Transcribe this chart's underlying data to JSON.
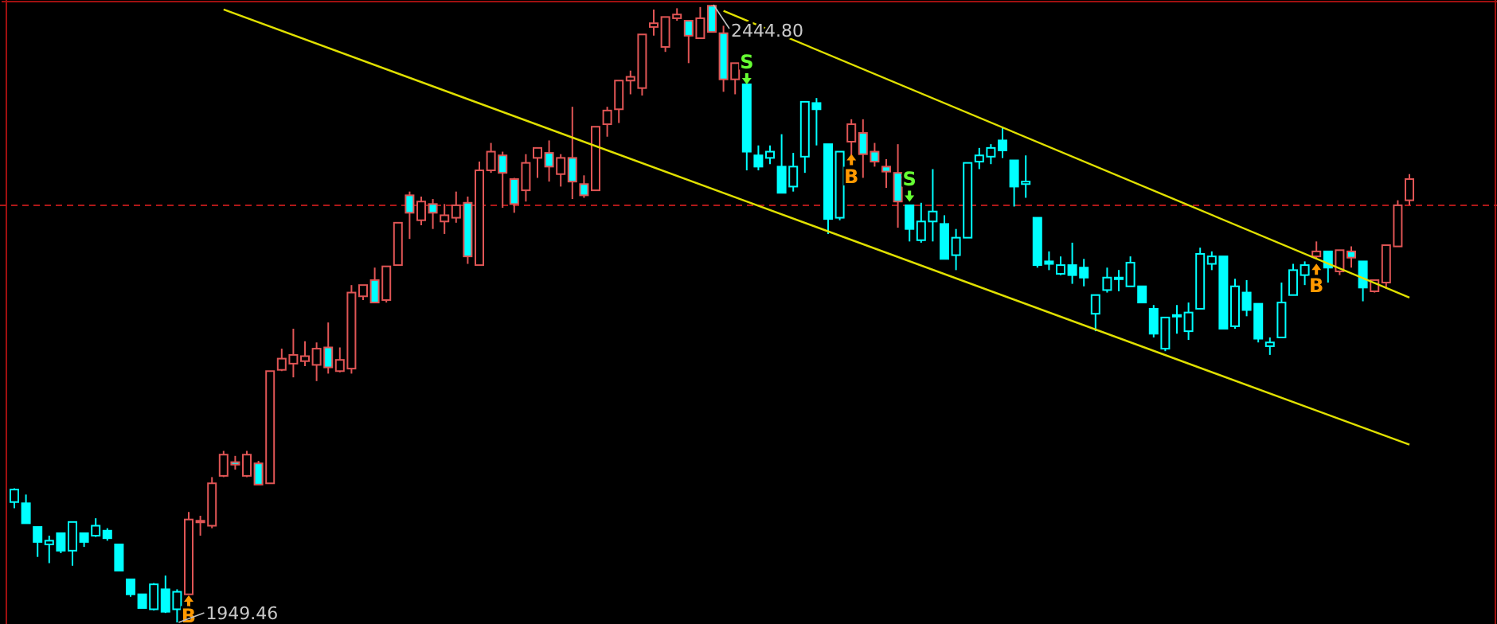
{
  "chart_data": {
    "type": "candlestick",
    "tick_labels": false,
    "legend": false,
    "categories": [
      null,
      null,
      null,
      null,
      null,
      null,
      null,
      null,
      null,
      null,
      null,
      null,
      null,
      null,
      null,
      null,
      null,
      null,
      null,
      null,
      null,
      null,
      null,
      null,
      null,
      null,
      null,
      null,
      null,
      null,
      null,
      null,
      null,
      null,
      null,
      null,
      null,
      null,
      null,
      null,
      null,
      null,
      null,
      null,
      null,
      null,
      null,
      null,
      null,
      null,
      null,
      null,
      null,
      null,
      null,
      null,
      null,
      null,
      null,
      null,
      null,
      null,
      null,
      null,
      null,
      null,
      null,
      null,
      null,
      null,
      null,
      null,
      null,
      null,
      null,
      null,
      null,
      null,
      null,
      null,
      null,
      null,
      null,
      null,
      null,
      null,
      null,
      null,
      null,
      null,
      null,
      null,
      null,
      null,
      null,
      null,
      null,
      null,
      null,
      null,
      null,
      null,
      null,
      null,
      null,
      null,
      null,
      null,
      null,
      null,
      null,
      null,
      null,
      null,
      null,
      null,
      null,
      null,
      null,
      null,
      null
    ],
    "ohlc": [
      [
        2046,
        2057,
        2041,
        2056
      ],
      [
        2045,
        2052,
        2029,
        2029
      ],
      [
        2026,
        2026,
        2002,
        2014
      ],
      [
        2012,
        2019,
        1997,
        2015
      ],
      [
        2021,
        2021,
        2005,
        2007
      ],
      [
        2007,
        2030,
        1995,
        2030
      ],
      [
        2021,
        2021,
        2010,
        2014
      ],
      [
        2019,
        2033,
        2018,
        2027
      ],
      [
        2023,
        2025,
        2015,
        2017
      ],
      [
        2012,
        2012,
        1991,
        1991
      ],
      [
        1984,
        1984,
        1970,
        1972
      ],
      [
        1972,
        1972,
        1961,
        1961
      ],
      [
        1960,
        1981,
        1959,
        1980
      ],
      [
        1976,
        1987,
        1957,
        1958
      ],
      [
        1960,
        1976,
        1949.46,
        1974
      ],
      [
        1972,
        2038,
        1972,
        2032
      ],
      [
        2030,
        2035,
        2019,
        2031
      ],
      [
        2027,
        2066,
        2025,
        2061
      ],
      [
        2067,
        2087,
        2066,
        2084
      ],
      [
        2078,
        2083,
        2072,
        2076
      ],
      [
        2067,
        2087,
        2066,
        2084
      ],
      [
        2077,
        2079,
        2060,
        2060
      ],
      [
        2061,
        2151,
        2061,
        2151
      ],
      [
        2152,
        2169,
        2151,
        2161
      ],
      [
        2157,
        2185,
        2146,
        2164
      ],
      [
        2159,
        2175,
        2155,
        2163
      ],
      [
        2156,
        2174,
        2143,
        2169
      ],
      [
        2170,
        2190,
        2149,
        2154
      ],
      [
        2151,
        2170,
        2150,
        2160
      ],
      [
        2153,
        2220,
        2149,
        2214
      ],
      [
        2211,
        2220,
        2208,
        2220
      ],
      [
        2224,
        2234,
        2206,
        2206
      ],
      [
        2208,
        2235,
        2206,
        2235
      ],
      [
        2236,
        2270,
        2236,
        2270
      ],
      [
        2292,
        2295,
        2257,
        2278
      ],
      [
        2272,
        2291,
        2268,
        2287
      ],
      [
        2285,
        2289,
        2265,
        2278
      ],
      [
        2271,
        2285,
        2261,
        2276
      ],
      [
        2274,
        2295,
        2270,
        2284
      ],
      [
        2286,
        2291,
        2237,
        2243
      ],
      [
        2236,
        2319,
        2236,
        2312
      ],
      [
        2312,
        2334,
        2310,
        2327
      ],
      [
        2324,
        2327,
        2282,
        2310
      ],
      [
        2305,
        2306,
        2278,
        2285
      ],
      [
        2296,
        2325,
        2287,
        2318
      ],
      [
        2322,
        2330,
        2306,
        2330
      ],
      [
        2326,
        2336,
        2303,
        2315
      ],
      [
        2309,
        2325,
        2299,
        2322
      ],
      [
        2322,
        2363,
        2289,
        2303
      ],
      [
        2301,
        2308,
        2290,
        2292
      ],
      [
        2296,
        2347,
        2296,
        2347
      ],
      [
        2349,
        2363,
        2339,
        2360
      ],
      [
        2361,
        2384,
        2350,
        2384
      ],
      [
        2384,
        2392,
        2373,
        2387
      ],
      [
        2378,
        2421,
        2372,
        2421
      ],
      [
        2427,
        2441,
        2420,
        2430
      ],
      [
        2411,
        2435,
        2407,
        2435
      ],
      [
        2434,
        2442,
        2432,
        2437
      ],
      [
        2432,
        2432,
        2398,
        2420
      ],
      [
        2418,
        2443,
        2418,
        2434
      ],
      [
        2444,
        2444.8,
        2423,
        2423
      ],
      [
        2422,
        2428,
        2375,
        2385
      ],
      [
        2385,
        2398,
        2373,
        2398
      ],
      [
        2381,
        2381,
        2312,
        2327
      ],
      [
        2324,
        2332,
        2312,
        2315
      ],
      [
        2322,
        2332,
        2317,
        2327
      ],
      [
        2315,
        2341,
        2294,
        2294
      ],
      [
        2299,
        2326,
        2295,
        2315
      ],
      [
        2323,
        2367,
        2310,
        2367
      ],
      [
        2366,
        2370,
        2332,
        2361
      ],
      [
        2333,
        2333,
        2261,
        2273
      ],
      [
        2274,
        2327,
        2272,
        2327
      ],
      [
        2335,
        2353,
        2323,
        2349
      ],
      [
        2342,
        2353,
        2306,
        2325
      ],
      [
        2327,
        2334,
        2315,
        2319
      ],
      [
        2315,
        2321,
        2298,
        2311
      ],
      [
        2310,
        2333,
        2266,
        2287
      ],
      [
        2284,
        2284,
        2255,
        2265
      ],
      [
        2256,
        2286,
        2254,
        2271
      ],
      [
        2271,
        2313,
        2255,
        2279
      ],
      [
        2269,
        2276,
        2241,
        2241
      ],
      [
        2244,
        2265,
        2232,
        2258
      ],
      [
        2258,
        2318,
        2258,
        2318
      ],
      [
        2319,
        2330,
        2313,
        2324
      ],
      [
        2323,
        2333,
        2317,
        2330
      ],
      [
        2336,
        2346,
        2322,
        2328
      ],
      [
        2320,
        2320,
        2283,
        2299
      ],
      [
        2301,
        2324,
        2290,
        2303
      ],
      [
        2274,
        2274,
        2234,
        2236
      ],
      [
        2239,
        2247,
        2232,
        2237
      ],
      [
        2229,
        2243,
        2228,
        2236
      ],
      [
        2236,
        2254,
        2221,
        2228
      ],
      [
        2234,
        2241,
        2219,
        2226
      ],
      [
        2197,
        2212,
        2183,
        2212
      ],
      [
        2216,
        2234,
        2214,
        2226
      ],
      [
        2225,
        2232,
        2215,
        2226
      ],
      [
        2219,
        2243,
        2219,
        2238
      ],
      [
        2219,
        2219,
        2206,
        2206
      ],
      [
        2201,
        2204,
        2178,
        2181
      ],
      [
        2169,
        2194,
        2167,
        2194
      ],
      [
        2195,
        2204,
        2181,
        2196
      ],
      [
        2183,
        2206,
        2176,
        2198
      ],
      [
        2201,
        2250,
        2201,
        2245
      ],
      [
        2237,
        2247,
        2232,
        2243
      ],
      [
        2243,
        2243,
        2185,
        2185
      ],
      [
        2187,
        2225,
        2185,
        2219
      ],
      [
        2214,
        2224,
        2195,
        2200
      ],
      [
        2205,
        2205,
        2174,
        2177
      ],
      [
        2171,
        2178,
        2164,
        2174
      ],
      [
        2178,
        2222,
        2178,
        2206
      ],
      [
        2212,
        2237,
        2212,
        2232
      ],
      [
        2228,
        2239,
        2220,
        2236
      ],
      [
        2243,
        2255,
        2241,
        2247
      ],
      [
        2247,
        2247,
        2222,
        2234
      ],
      [
        2231,
        2248,
        2228,
        2248
      ],
      [
        2247,
        2251,
        2234,
        2242
      ],
      [
        2239,
        2239,
        2207,
        2218
      ],
      [
        2215,
        2224,
        2214,
        2224
      ],
      [
        2222,
        2252,
        2217,
        2252
      ],
      [
        2251,
        2288,
        2251,
        2284
      ],
      [
        2288,
        2309,
        2284,
        2305
      ]
    ],
    "colors": [
      "#00ffff",
      "#00ffff",
      "#00ffff",
      "#00ffff",
      "#00ffff",
      "#00ffff",
      "#00ffff",
      "#00ffff",
      "#00ffff",
      "#00ffff",
      "#00ffff",
      "#00ffff",
      "#00ffff",
      "#00ffff",
      "#00ffff",
      "#e05555",
      "#e05555",
      "#e05555",
      "#e05555",
      "#e05555",
      "#e05555",
      "#e05555",
      "#e05555",
      "#e05555",
      "#e05555",
      "#e05555",
      "#e05555",
      "#e05555",
      "#e05555",
      "#e05555",
      "#e05555",
      "#e05555",
      "#e05555",
      "#e05555",
      "#e05555",
      "#e05555",
      "#e05555",
      "#e05555",
      "#e05555",
      "#e05555",
      "#e05555",
      "#e05555",
      "#e05555",
      "#e05555",
      "#e05555",
      "#e05555",
      "#e05555",
      "#e05555",
      "#e05555",
      "#e05555",
      "#e05555",
      "#e05555",
      "#e05555",
      "#e05555",
      "#e05555",
      "#e05555",
      "#e05555",
      "#e05555",
      "#e05555",
      "#e05555",
      "#e05555",
      "#e05555",
      "#e05555",
      "#00ffff",
      "#00ffff",
      "#00ffff",
      "#00ffff",
      "#00ffff",
      "#00ffff",
      "#00ffff",
      "#00ffff",
      "#00ffff",
      "#e05555",
      "#e05555",
      "#e05555",
      "#e05555",
      "#e05555",
      "#00ffff",
      "#00ffff",
      "#00ffff",
      "#00ffff",
      "#00ffff",
      "#00ffff",
      "#00ffff",
      "#00ffff",
      "#00ffff",
      "#00ffff",
      "#00ffff",
      "#00ffff",
      "#00ffff",
      "#00ffff",
      "#00ffff",
      "#00ffff",
      "#00ffff",
      "#00ffff",
      "#00ffff",
      "#00ffff",
      "#00ffff",
      "#00ffff",
      "#00ffff",
      "#00ffff",
      "#00ffff",
      "#00ffff",
      "#00ffff",
      "#00ffff",
      "#00ffff",
      "#00ffff",
      "#00ffff",
      "#00ffff",
      "#00ffff",
      "#00ffff",
      "#00ffff",
      "#e05555",
      "#00ffff",
      "#e05555",
      "#e05555",
      "#00ffff",
      "#e05555",
      "#e05555",
      "#e05555",
      "#e05555"
    ],
    "series": [
      {
        "type": "line",
        "color": "#e0e000",
        "values": [
          null,
          null,
          null,
          null,
          null,
          null,
          null,
          null,
          null,
          null,
          null,
          null,
          null,
          null,
          null,
          null,
          null,
          null,
          2441,
          null,
          null,
          null,
          null,
          null,
          null,
          null,
          null,
          null,
          null,
          null,
          null,
          null,
          null,
          null,
          null,
          null,
          null,
          null,
          null,
          null,
          null,
          null,
          null,
          null,
          null,
          null,
          null,
          null,
          null,
          null,
          null,
          null,
          null,
          null,
          null,
          null,
          null,
          null,
          null,
          null,
          null,
          null,
          null,
          null,
          null,
          null,
          null,
          null,
          null,
          null,
          null,
          null,
          null,
          null,
          null,
          null,
          null,
          null,
          null,
          null,
          null,
          null,
          null,
          null,
          null,
          null,
          null,
          null,
          null,
          null,
          null,
          null,
          null,
          null,
          null,
          null,
          null,
          null,
          null,
          null,
          null,
          null,
          null,
          null,
          null,
          null,
          null,
          null,
          null,
          null,
          null,
          null,
          null,
          null,
          null,
          null,
          null,
          null,
          null,
          null,
          2092
        ]
      },
      {
        "type": "line",
        "color": "#e0e000",
        "values": [
          null,
          null,
          null,
          null,
          null,
          null,
          null,
          null,
          null,
          null,
          null,
          null,
          null,
          null,
          null,
          null,
          null,
          null,
          null,
          null,
          null,
          null,
          null,
          null,
          null,
          null,
          null,
          null,
          null,
          null,
          null,
          null,
          null,
          null,
          null,
          null,
          null,
          null,
          null,
          null,
          null,
          null,
          null,
          null,
          null,
          null,
          null,
          null,
          null,
          null,
          null,
          null,
          null,
          null,
          null,
          null,
          null,
          null,
          null,
          null,
          null,
          2440,
          null,
          null,
          null,
          null,
          null,
          null,
          null,
          null,
          null,
          null,
          null,
          null,
          null,
          null,
          null,
          null,
          null,
          null,
          null,
          null,
          null,
          null,
          null,
          null,
          null,
          null,
          null,
          null,
          null,
          null,
          null,
          null,
          null,
          null,
          null,
          null,
          null,
          null,
          null,
          null,
          null,
          null,
          null,
          null,
          null,
          null,
          null,
          null,
          null,
          null,
          null,
          null,
          null,
          null,
          null,
          null,
          null,
          null,
          2210
        ]
      },
      {
        "type": "scatter",
        "name": "B",
        "color": "#ff9900",
        "values": [
          null,
          null,
          null,
          null,
          null,
          null,
          null,
          null,
          null,
          null,
          null,
          null,
          null,
          null,
          null,
          1966,
          null,
          null,
          null,
          null,
          null,
          null,
          null,
          null,
          null,
          null,
          null,
          null,
          null,
          null,
          null,
          null,
          null,
          null,
          null,
          null,
          null,
          null,
          null,
          null,
          null,
          null,
          null,
          null,
          null,
          null,
          null,
          null,
          null,
          null,
          null,
          null,
          null,
          null,
          null,
          null,
          null,
          null,
          null,
          null,
          null,
          null,
          null,
          null,
          null,
          null,
          null,
          null,
          null,
          null,
          null,
          null,
          2320,
          null,
          null,
          null,
          null,
          null,
          null,
          null,
          null,
          null,
          null,
          null,
          null,
          null,
          null,
          null,
          null,
          null,
          null,
          null,
          null,
          null,
          null,
          null,
          null,
          null,
          null,
          null,
          null,
          null,
          null,
          null,
          null,
          null,
          null,
          null,
          null,
          null,
          null,
          null,
          2232,
          null,
          null,
          null,
          null,
          null,
          null,
          null,
          null
        ]
      },
      {
        "type": "scatter",
        "name": "S",
        "color": "#66ff33",
        "values": [
          null,
          null,
          null,
          null,
          null,
          null,
          null,
          null,
          null,
          null,
          null,
          null,
          null,
          null,
          null,
          null,
          null,
          null,
          null,
          null,
          null,
          null,
          null,
          null,
          null,
          null,
          null,
          null,
          null,
          null,
          null,
          null,
          null,
          null,
          null,
          null,
          null,
          null,
          null,
          null,
          null,
          null,
          null,
          null,
          null,
          null,
          null,
          null,
          null,
          null,
          null,
          null,
          null,
          null,
          null,
          null,
          null,
          null,
          null,
          null,
          null,
          null,
          null,
          2386,
          null,
          null,
          null,
          null,
          null,
          null,
          null,
          null,
          null,
          null,
          null,
          null,
          null,
          2292,
          null,
          null,
          null,
          null,
          null,
          null,
          null,
          null,
          null,
          null,
          null,
          null,
          null,
          null,
          null,
          null,
          null,
          null,
          null,
          null,
          null,
          null,
          null,
          null,
          null,
          null,
          null,
          null,
          null,
          null,
          null,
          null,
          null,
          null,
          null,
          null,
          null,
          null,
          null,
          null,
          null,
          null,
          null
        ]
      }
    ],
    "ref_lines": [
      {
        "axis": "y",
        "value": 2284,
        "color": "#b01818",
        "line_style": "dashed"
      }
    ],
    "annotations": [
      "2444.80",
      "1949.46"
    ]
  }
}
